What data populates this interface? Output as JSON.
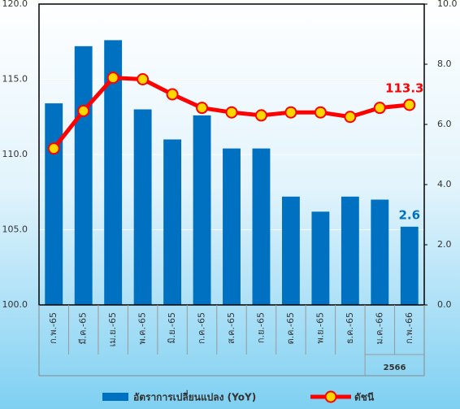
{
  "chart_data": {
    "type": "bar-line",
    "categories": [
      "ก.พ.-65",
      "มี.ค.-65",
      "เม.ย.-65",
      "พ.ค.-65",
      "มิ.ย.-65",
      "ก.ค.-65",
      "ส.ค.-65",
      "ก.ย.-65",
      "ต.ค.-65",
      "พ.ย.-65",
      "ธ.ค.-65",
      "ม.ค.-66",
      "ก.พ.-66"
    ],
    "group_label": "2566",
    "series": [
      {
        "name": "อัตราการเปลี่ยนแปลง (YoY)",
        "type": "bar",
        "axis": "y2",
        "color": "#0070c0",
        "values": [
          6.7,
          8.6,
          8.8,
          6.5,
          5.5,
          6.3,
          5.2,
          5.2,
          3.6,
          3.1,
          3.6,
          3.5,
          2.6
        ]
      },
      {
        "name": "ดัชนี",
        "type": "line",
        "axis": "y",
        "color": "#ff0000",
        "marker_color": "#ffd700",
        "values": [
          110.4,
          112.9,
          115.1,
          115.0,
          114.0,
          113.1,
          112.8,
          112.6,
          112.8,
          112.8,
          112.5,
          113.1,
          113.3
        ]
      }
    ],
    "ylim": [
      100,
      120
    ],
    "yticks": [
      {
        "value": 100,
        "label": "100.0"
      },
      {
        "value": 105,
        "label": "105.0"
      },
      {
        "value": 110,
        "label": "110.0"
      },
      {
        "value": 115,
        "label": "115.0"
      },
      {
        "value": 120,
        "label": "120.0"
      }
    ],
    "y2lim": [
      0,
      10
    ],
    "y2ticks": [
      {
        "value": 0,
        "label": "0.0"
      },
      {
        "value": 2,
        "label": "2.0"
      },
      {
        "value": 4,
        "label": "4.0"
      },
      {
        "value": 6,
        "label": "6.0"
      },
      {
        "value": 8,
        "label": "8.0"
      },
      {
        "value": 10,
        "label": "10.0"
      }
    ],
    "grid": true
  }
}
